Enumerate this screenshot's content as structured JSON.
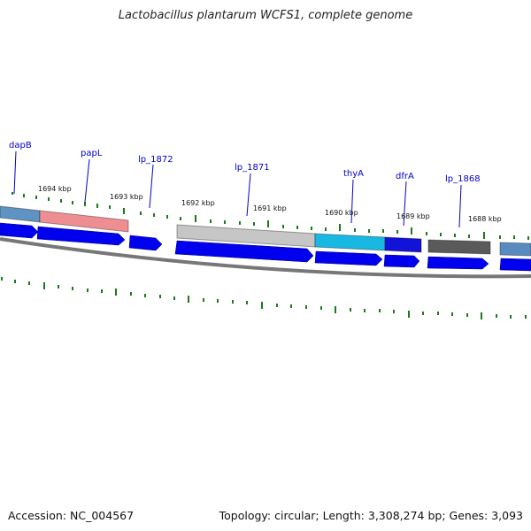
{
  "header": {
    "title": "Lactobacillus plantarum WCFS1, complete genome"
  },
  "footer": {
    "accession": "Accession: NC_004567",
    "summary": "Topology: circular; Length: 3,308,274 bp; Genes: 3,093"
  },
  "scale": {
    "labels": [
      "1694 kbp",
      "1693 kbp",
      "1692 kbp",
      "1691 kbp",
      "1690 kbp",
      "1689 kbp",
      "1688 kbp"
    ]
  },
  "genes": {
    "labels": [
      "dapB",
      "papL",
      "lp_1872",
      "lp_1871",
      "thyA",
      "dfrA",
      "lp_1868"
    ]
  },
  "colors": {
    "cds": "#0000ee",
    "backbone": "#777777",
    "tick": "#1a7a1a",
    "gene_label": "#0000cc",
    "dapB_bar": "#5f93c2",
    "papL_bar": "#ee8e92",
    "lp_1871_bar": "#c6c6c6",
    "thyA_bar": "#19b8e2",
    "dfrA_bar": "#1212d8",
    "lp_1868_bar": "#5a5a5a",
    "right_edge_bar": "#5a8bc0"
  }
}
